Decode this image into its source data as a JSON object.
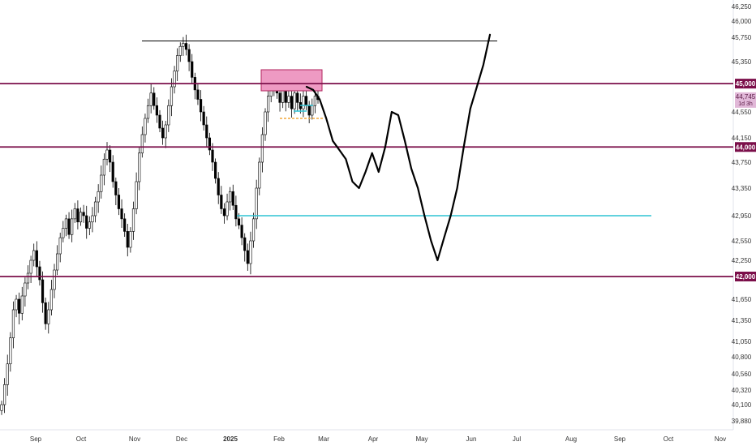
{
  "chart_data": {
    "type": "candlestick",
    "title": "",
    "xlabel": "",
    "ylabel": "",
    "ylim": [
      39880,
      46250
    ],
    "y_ticks": [
      {
        "value": 46250,
        "label": "46,250"
      },
      {
        "value": 46000,
        "label": "46,000"
      },
      {
        "value": 45750,
        "label": "45,750"
      },
      {
        "value": 45350,
        "label": "45,350"
      },
      {
        "value": 44550,
        "label": "44,550"
      },
      {
        "value": 44150,
        "label": "44,150"
      },
      {
        "value": 43750,
        "label": "43,750"
      },
      {
        "value": 43350,
        "label": "43,350"
      },
      {
        "value": 42950,
        "label": "42,950"
      },
      {
        "value": 42550,
        "label": "42,550"
      },
      {
        "value": 42250,
        "label": "42,250"
      },
      {
        "value": 41650,
        "label": "41,650"
      },
      {
        "value": 41350,
        "label": "41,350"
      },
      {
        "value": 41050,
        "label": "41,050"
      },
      {
        "value": 40800,
        "label": "40,800"
      },
      {
        "value": 40560,
        "label": "40,560"
      },
      {
        "value": 40320,
        "label": "40,320"
      },
      {
        "value": 40100,
        "label": "40,100"
      },
      {
        "value": 39880,
        "label": "39,880"
      }
    ],
    "x_ticks": [
      {
        "label": "Sep",
        "bold": false
      },
      {
        "label": "Oct",
        "bold": false
      },
      {
        "label": "Nov",
        "bold": false
      },
      {
        "label": "Dec",
        "bold": false
      },
      {
        "label": "2025",
        "bold": true
      },
      {
        "label": "Feb",
        "bold": false
      },
      {
        "label": "Mar",
        "bold": false
      },
      {
        "label": "Apr",
        "bold": false
      },
      {
        "label": "May",
        "bold": false
      },
      {
        "label": "Jun",
        "bold": false
      },
      {
        "label": "Jul",
        "bold": false
      },
      {
        "label": "Aug",
        "bold": false
      },
      {
        "label": "Sep",
        "bold": false
      },
      {
        "label": "Oct",
        "bold": false
      },
      {
        "label": "Nov",
        "bold": false
      }
    ],
    "levels": [
      {
        "name": "level-45000",
        "value": 45000,
        "label": "45,000",
        "color": "#7b0f4a"
      },
      {
        "name": "level-44000",
        "value": 44000,
        "label": "44,000",
        "color": "#7b0f4a"
      },
      {
        "name": "level-42000",
        "value": 42000,
        "label": "42,000",
        "color": "#7b0f4a"
      }
    ],
    "current_price": {
      "label": "44,745",
      "countdown": "1d 3h",
      "value": 44745,
      "color": "#e1b8d8"
    },
    "resistance_value": 45690,
    "support_cyan_value": 42950,
    "candle_seed": [
      40100,
      40400,
      40700,
      41100,
      41500,
      41650,
      41450,
      41700,
      41900,
      42050,
      42250,
      42400,
      42150,
      41950,
      41600,
      41300,
      41500,
      41800,
      42100,
      42350,
      42600,
      42750,
      42900,
      42650,
      42900,
      43050,
      42850,
      43000,
      42950,
      42750,
      42850,
      42950,
      43150,
      43300,
      43550,
      43800,
      43950,
      43750,
      43450,
      43250,
      43050,
      42900,
      42700,
      42450,
      42700,
      43050,
      43450,
      43900,
      44200,
      44450,
      44650,
      44850,
      44650,
      44500,
      44300,
      44150,
      44350,
      44650,
      44950,
      45200,
      45450,
      45600,
      45650,
      45550,
      45350,
      45100,
      44900,
      44750,
      44550,
      44350,
      44150,
      43950,
      43750,
      43500,
      43250,
      43050,
      42950,
      43150,
      43300,
      43100,
      42900,
      42800,
      42600,
      42400,
      42200,
      42550,
      42900,
      43350,
      43750,
      44200,
      44550,
      44800,
      44950,
      45050,
      44850,
      44700,
      44900,
      44700,
      44800,
      44600,
      44850,
      44700,
      44600,
      44800,
      44650,
      44500,
      44650,
      44800,
      44745
    ],
    "projection": [
      [
        44950,
        45075
      ],
      [
        44900,
        44900
      ],
      [
        44750,
        44750
      ],
      [
        44450,
        44450
      ],
      [
        44100,
        44100
      ],
      [
        43950,
        43950
      ],
      [
        43800,
        43800
      ],
      [
        43450,
        43450
      ],
      [
        43350,
        43350
      ],
      [
        43600,
        43600
      ],
      [
        43900,
        43900
      ],
      [
        43600,
        43600
      ],
      [
        44000,
        44000
      ],
      [
        44550,
        44550
      ],
      [
        44500,
        44500
      ],
      [
        44100,
        44100
      ],
      [
        43650,
        43650
      ],
      [
        43350,
        43350
      ],
      [
        42950,
        42950
      ],
      [
        42550,
        42550
      ],
      [
        42250,
        42250
      ],
      [
        42600,
        42600
      ],
      [
        42950,
        42950
      ],
      [
        43350,
        43350
      ],
      [
        44000,
        44000
      ],
      [
        44600,
        44600
      ],
      [
        44950,
        44950
      ],
      [
        45300,
        45300
      ],
      [
        45790,
        45790
      ]
    ]
  }
}
